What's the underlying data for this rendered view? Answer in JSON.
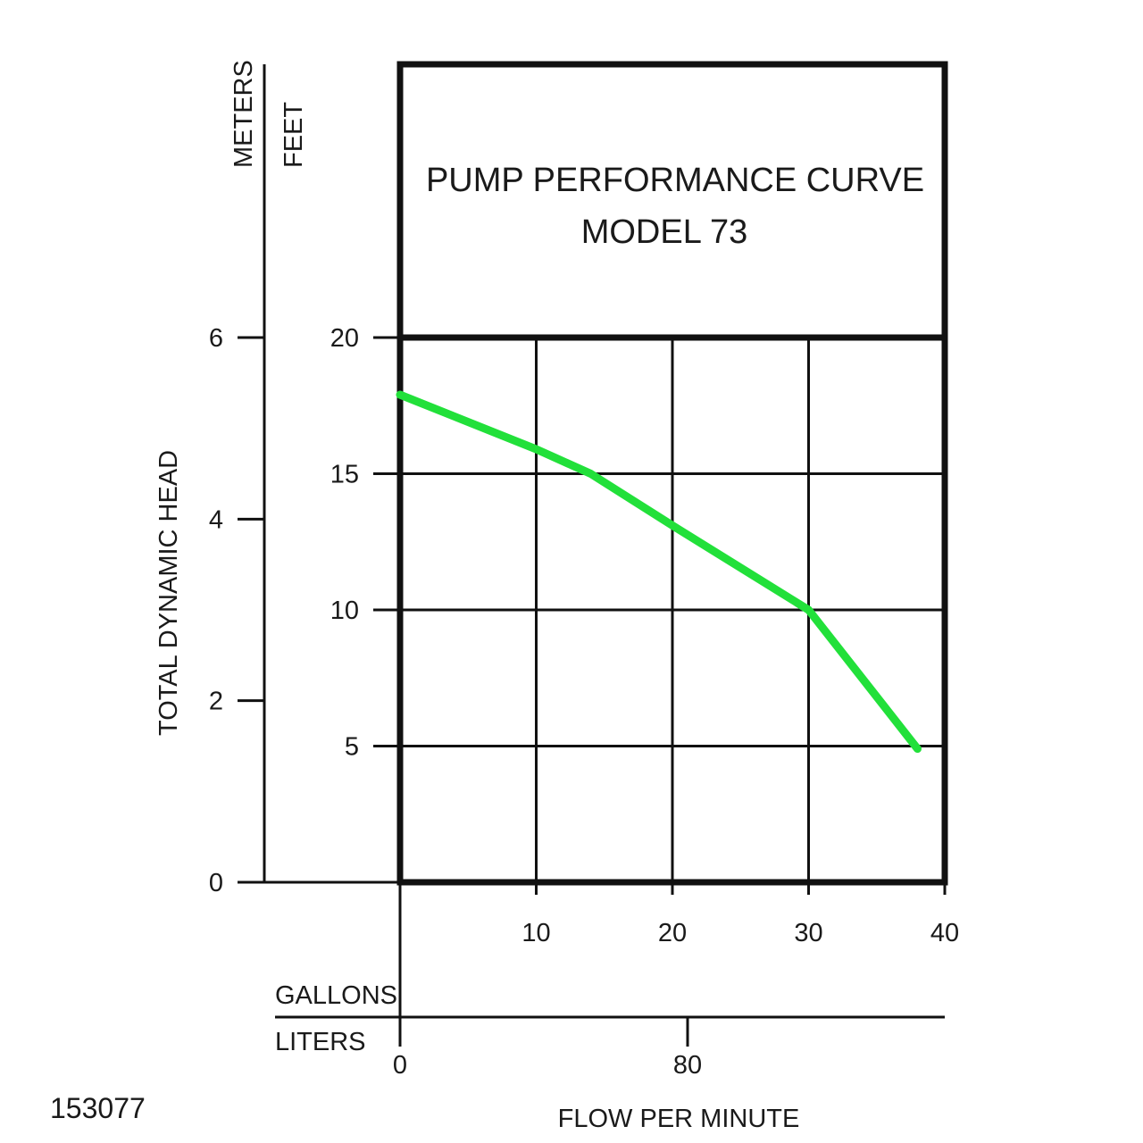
{
  "chart_data": {
    "type": "line",
    "title": "PUMP PERFORMANCE CURVE",
    "subtitle": "MODEL 73",
    "ylabel": "TOTAL DYNAMIC HEAD",
    "xlabel": "FLOW PER MINUTE",
    "y_units": {
      "primary": "FEET",
      "secondary": "METERS"
    },
    "x_units": {
      "primary": "GALLONS",
      "secondary": "LITERS"
    },
    "ylim": [
      0,
      20
    ],
    "xlim": [
      0,
      40
    ],
    "y_ticks_feet": [
      "5",
      "10",
      "15",
      "20"
    ],
    "y_tick_values_feet": [
      5,
      10,
      15,
      20
    ],
    "y_ticks_meters": [
      "0",
      "2",
      "4",
      "6"
    ],
    "y_tick_values_meters": [
      0,
      2,
      4,
      6
    ],
    "x_ticks_gallons": [
      "10",
      "20",
      "30",
      "40"
    ],
    "x_tick_values_gallons": [
      10,
      20,
      30,
      40
    ],
    "x_ticks_liters": [
      "0",
      "80"
    ],
    "x_tick_values_liters": [
      0,
      80
    ],
    "grid": true,
    "series": [
      {
        "x": [
          0,
          10,
          14,
          20,
          30,
          38
        ],
        "y": [
          17.9,
          15.9,
          15.0,
          13.1,
          10.0,
          4.9
        ]
      }
    ],
    "line_color": "#22e03a",
    "figure_code": "153077"
  }
}
